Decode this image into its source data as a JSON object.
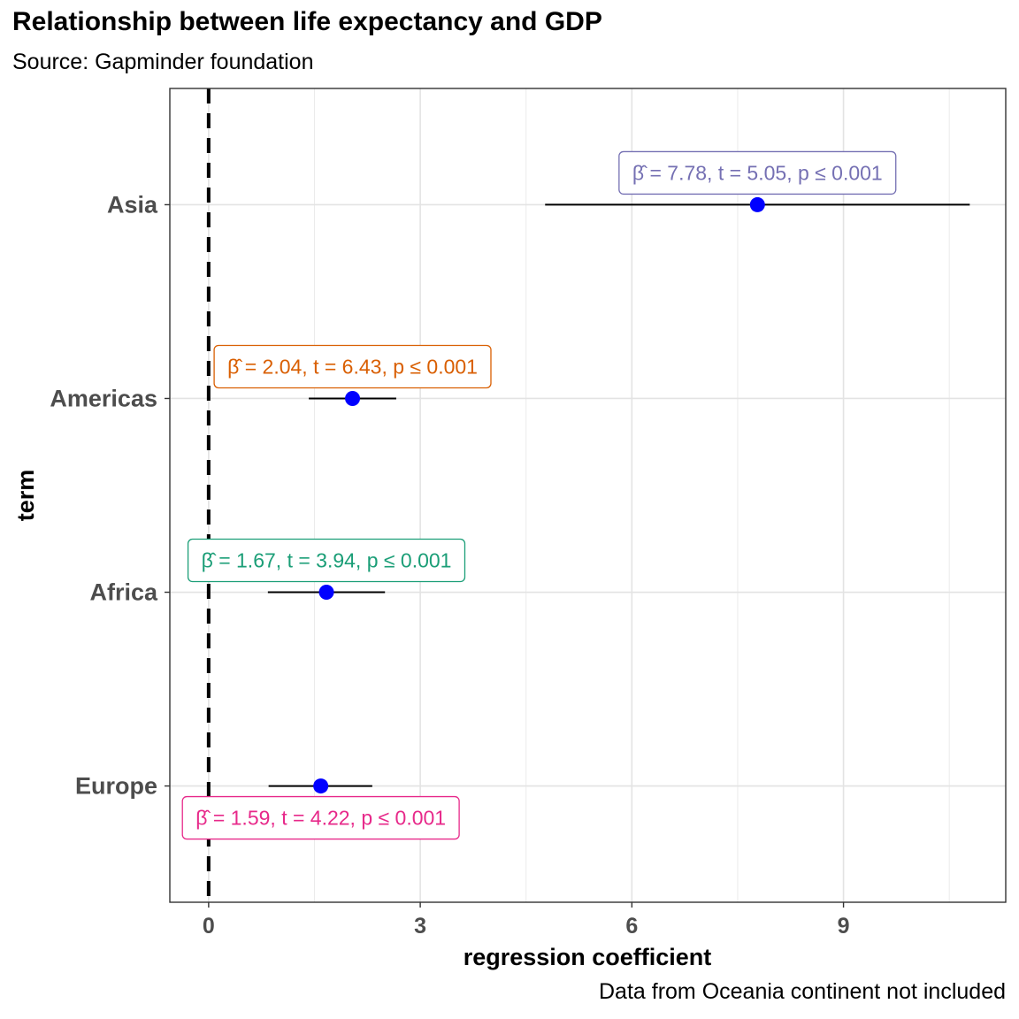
{
  "chart_data": {
    "type": "dot-whisker",
    "title": "Relationship between life expectancy and GDP",
    "subtitle": "Source: Gapminder foundation",
    "caption": "Data from Oceania continent not included",
    "xlabel": "regression coefficient",
    "ylabel": "term",
    "xlim": [
      -0.55,
      11.3
    ],
    "x_ticks": [
      0,
      3,
      6,
      9
    ],
    "x_minor": [
      1.5,
      4.5,
      7.5,
      10.5
    ],
    "reference_line": 0,
    "point_color": "#0000ff",
    "grid": true,
    "terms": [
      {
        "name": "Europe",
        "estimate": 1.59,
        "conf_low": 0.85,
        "conf_high": 2.32,
        "label": "β̂ = 1.59,  t = 4.22,  p ≤ 0.001",
        "label_color": "#e7298a",
        "label_side": "below"
      },
      {
        "name": "Africa",
        "estimate": 1.67,
        "conf_low": 0.84,
        "conf_high": 2.5,
        "label": "β̂ = 1.67,  t = 3.94,  p ≤ 0.001",
        "label_color": "#1b9e77",
        "label_side": "above"
      },
      {
        "name": "Americas",
        "estimate": 2.04,
        "conf_low": 1.42,
        "conf_high": 2.66,
        "label": "β̂ = 2.04,  t = 6.43,  p ≤ 0.001",
        "label_color": "#d95f02",
        "label_side": "above"
      },
      {
        "name": "Asia",
        "estimate": 7.78,
        "conf_low": 4.77,
        "conf_high": 10.79,
        "label": "β̂ = 7.78,  t = 5.05,  p ≤ 0.001",
        "label_color": "#7570b3",
        "label_side": "above"
      }
    ]
  }
}
